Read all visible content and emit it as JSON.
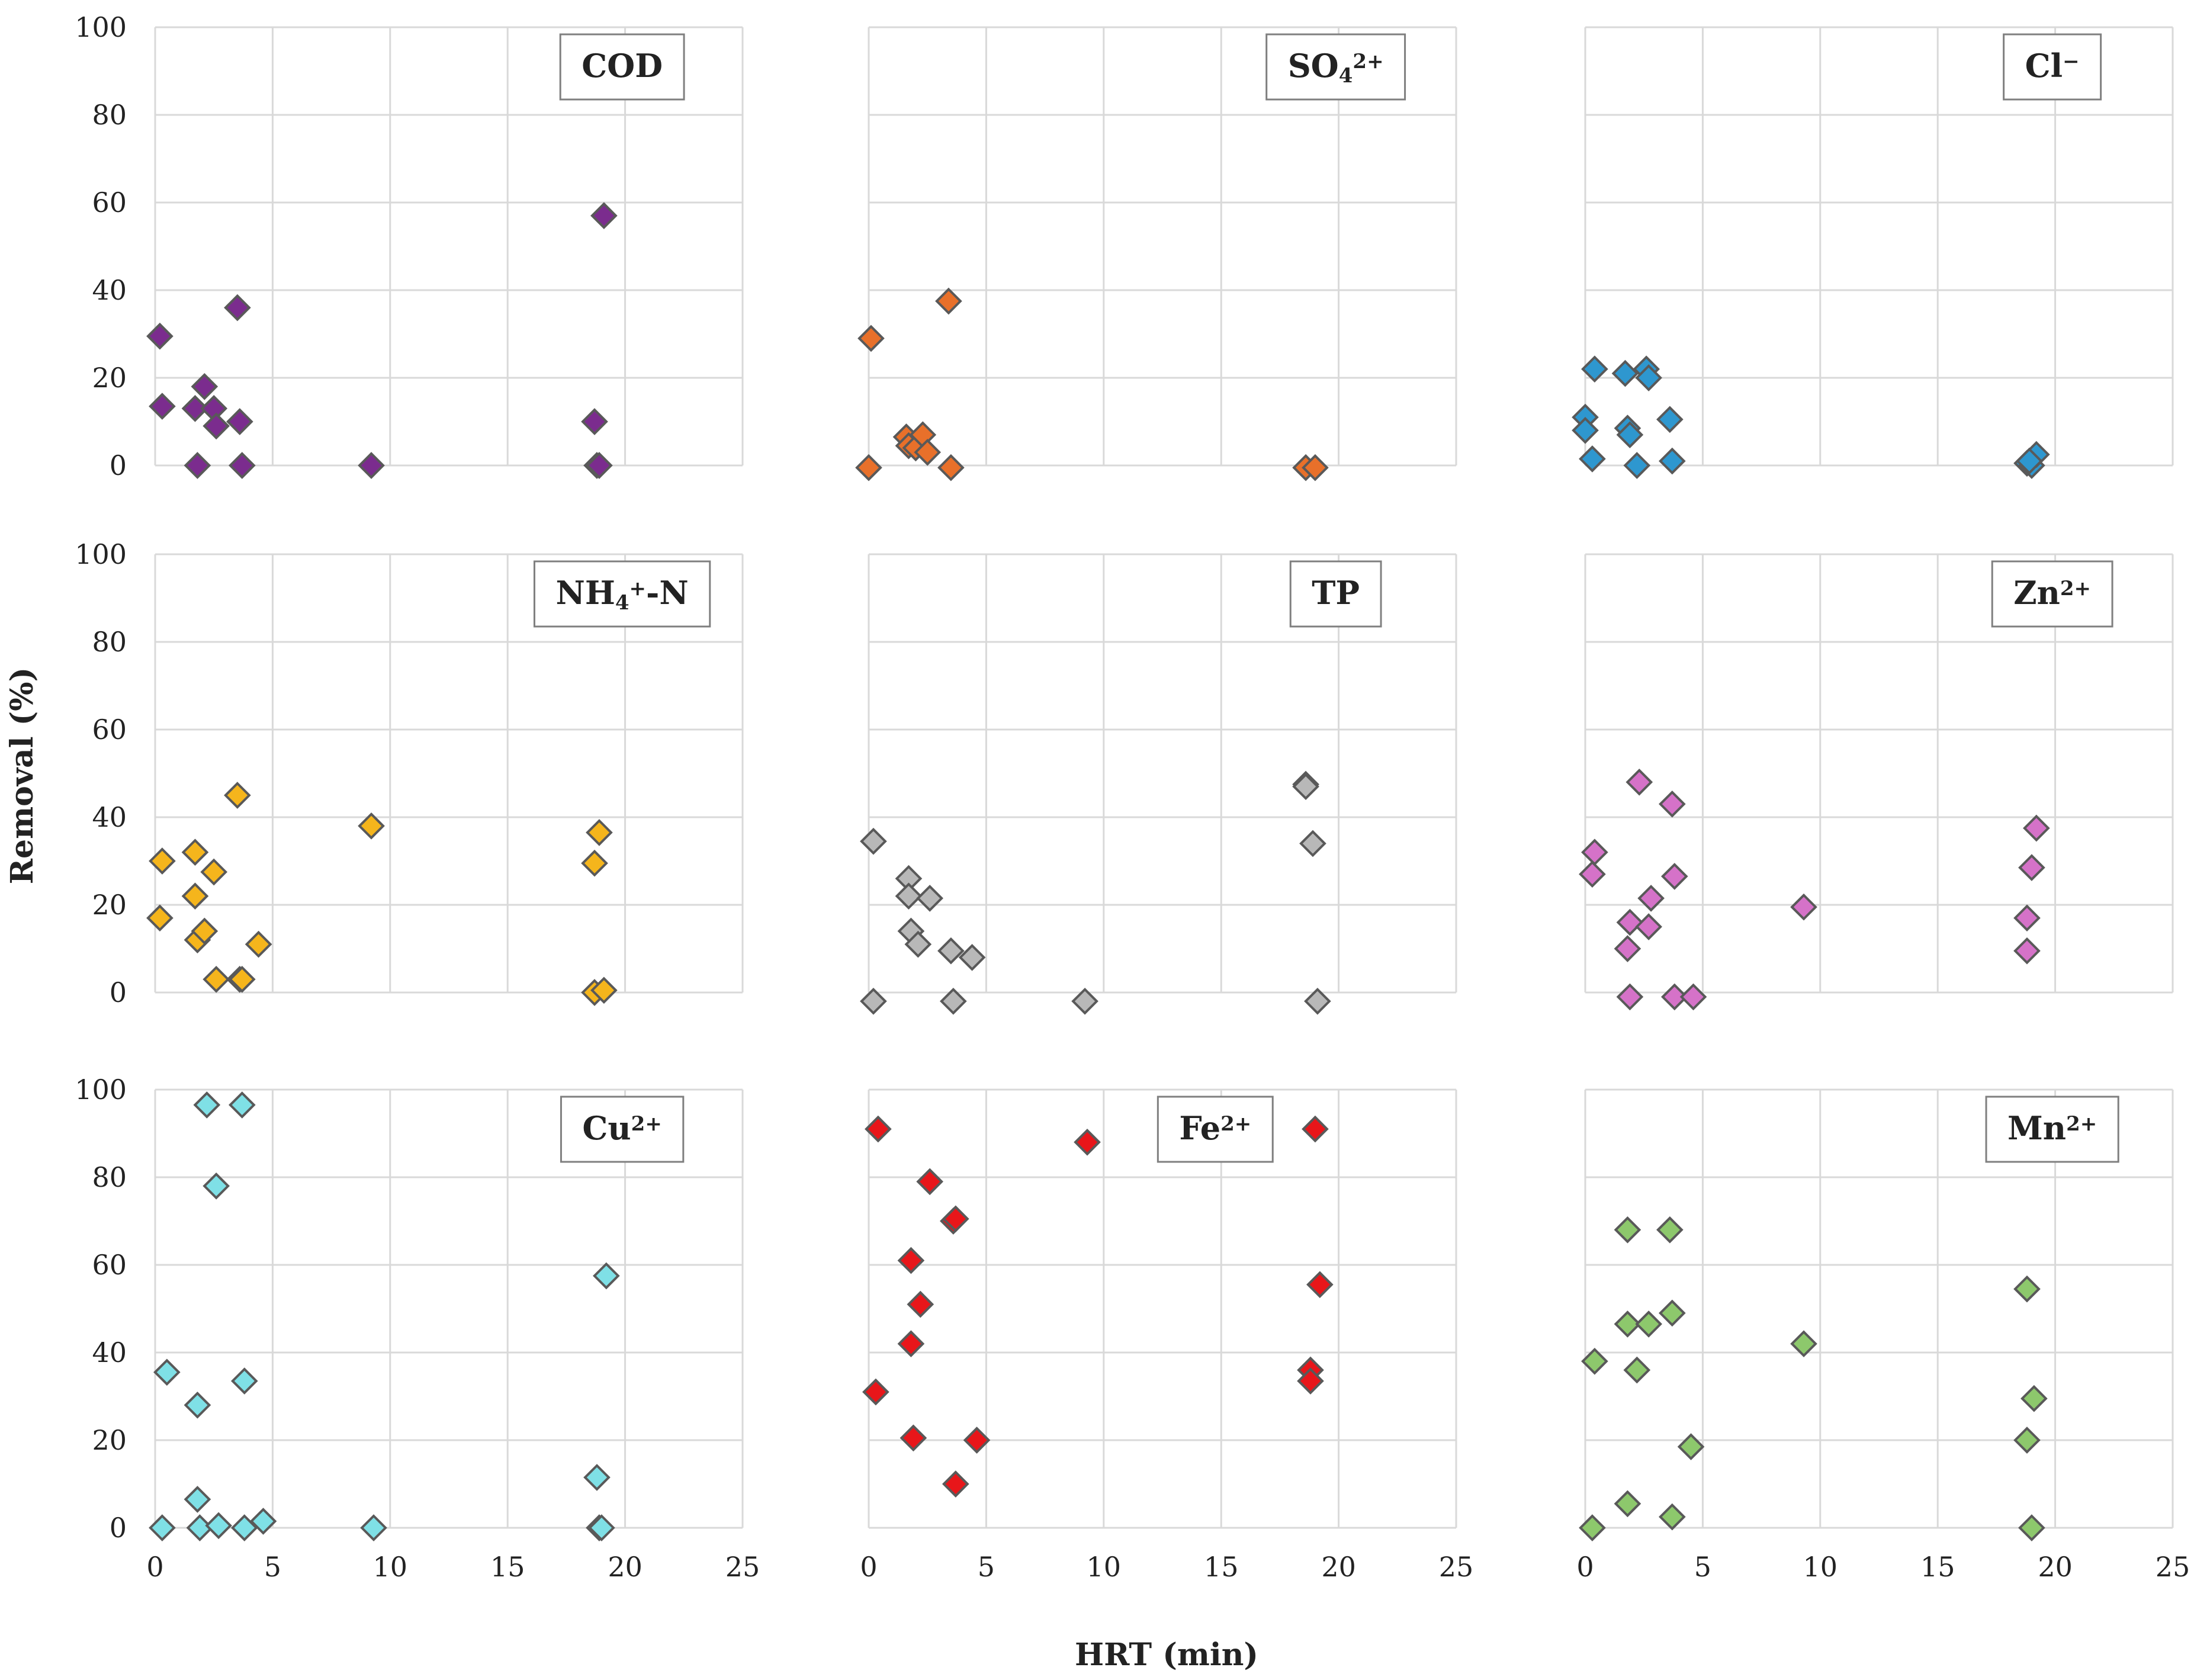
{
  "figure": {
    "ylabel": "Removal (%)",
    "xlabel": "HRT (min)"
  },
  "chart_data": [
    {
      "type": "scatter",
      "title": "COD",
      "label_parts": [
        {
          "t": "COD"
        }
      ],
      "color": "#7B2C8E",
      "xlim": [
        0,
        25
      ],
      "ylim": [
        0,
        100
      ],
      "xticks": [
        "0",
        "5",
        "10",
        "15",
        "20",
        "25"
      ],
      "yticks": [
        "0",
        "20",
        "40",
        "60",
        "80",
        "100"
      ],
      "show_x_ticks": false,
      "show_y_ticks": true,
      "label_pos": "top-right",
      "points": [
        [
          0.2,
          29.5
        ],
        [
          0.3,
          13.5
        ],
        [
          1.7,
          13
        ],
        [
          1.8,
          0
        ],
        [
          2.1,
          18
        ],
        [
          2.5,
          13
        ],
        [
          2.6,
          9
        ],
        [
          3.5,
          36
        ],
        [
          3.6,
          10
        ],
        [
          3.7,
          0
        ],
        [
          9.2,
          0
        ],
        [
          18.7,
          10
        ],
        [
          18.8,
          0
        ],
        [
          19.1,
          57
        ],
        [
          18.9,
          0
        ]
      ]
    },
    {
      "type": "scatter",
      "title": "SO4 2+",
      "label_parts": [
        {
          "t": "SO"
        },
        {
          "t": "4",
          "sub": true
        },
        {
          "t": "2+",
          "sup": true
        }
      ],
      "color": "#E8702A",
      "xlim": [
        0,
        25
      ],
      "ylim": [
        0,
        100
      ],
      "xticks": [
        "0",
        "5",
        "10",
        "15",
        "20",
        "25"
      ],
      "yticks": [
        "0",
        "20",
        "40",
        "60",
        "80",
        "100"
      ],
      "show_x_ticks": false,
      "show_y_ticks": false,
      "label_pos": "top-right",
      "points": [
        [
          0.1,
          29
        ],
        [
          0.0,
          -0.5
        ],
        [
          1.6,
          6.5
        ],
        [
          1.7,
          4.5
        ],
        [
          2.0,
          4
        ],
        [
          2.3,
          7
        ],
        [
          2.5,
          3
        ],
        [
          3.4,
          37.5
        ],
        [
          3.5,
          -0.5
        ],
        [
          18.6,
          -0.5
        ],
        [
          19.0,
          -0.5
        ]
      ]
    },
    {
      "type": "scatter",
      "title": "Cl−",
      "label_parts": [
        {
          "t": "Cl"
        },
        {
          "t": "−",
          "sup": true
        }
      ],
      "color": "#2E97CF",
      "xlim": [
        0,
        25
      ],
      "ylim": [
        0,
        100
      ],
      "xticks": [
        "0",
        "5",
        "10",
        "15",
        "20",
        "25"
      ],
      "yticks": [
        "0",
        "20",
        "40",
        "60",
        "80",
        "100"
      ],
      "show_x_ticks": false,
      "show_y_ticks": false,
      "label_pos": "top-right",
      "points": [
        [
          0.0,
          11
        ],
        [
          0.0,
          8
        ],
        [
          0.3,
          1.5
        ],
        [
          0.4,
          22
        ],
        [
          1.7,
          21
        ],
        [
          1.8,
          8.5
        ],
        [
          1.9,
          7
        ],
        [
          2.2,
          0
        ],
        [
          2.6,
          22
        ],
        [
          2.7,
          20
        ],
        [
          3.6,
          10.5
        ],
        [
          3.7,
          1
        ],
        [
          18.8,
          0.5
        ],
        [
          19.0,
          0
        ],
        [
          19.2,
          2.5
        ],
        [
          18.9,
          1
        ]
      ]
    },
    {
      "type": "scatter",
      "title": "NH4+-N",
      "label_parts": [
        {
          "t": "NH"
        },
        {
          "t": "4",
          "sub": true
        },
        {
          "t": "+",
          "sup": true
        },
        {
          "t": "-N"
        }
      ],
      "color": "#F5B51C",
      "xlim": [
        0,
        25
      ],
      "ylim": [
        0,
        100
      ],
      "xticks": [
        "0",
        "5",
        "10",
        "15",
        "20",
        "25"
      ],
      "yticks": [
        "0",
        "20",
        "40",
        "60",
        "80",
        "100"
      ],
      "show_x_ticks": false,
      "show_y_ticks": true,
      "label_pos": "top-right",
      "points": [
        [
          0.2,
          17
        ],
        [
          0.3,
          30
        ],
        [
          1.7,
          32
        ],
        [
          1.7,
          22
        ],
        [
          1.8,
          12
        ],
        [
          2.1,
          14
        ],
        [
          2.5,
          27.5
        ],
        [
          2.6,
          3
        ],
        [
          3.5,
          45
        ],
        [
          3.6,
          3
        ],
        [
          3.7,
          3
        ],
        [
          4.4,
          11
        ],
        [
          9.2,
          38
        ],
        [
          18.7,
          29.5
        ],
        [
          18.9,
          36.5
        ],
        [
          18.7,
          0
        ],
        [
          19.1,
          0.5
        ]
      ]
    },
    {
      "type": "scatter",
      "title": "TP",
      "label_parts": [
        {
          "t": "TP"
        }
      ],
      "color": "#B8B8B8",
      "xlim": [
        0,
        25
      ],
      "ylim": [
        0,
        100
      ],
      "xticks": [
        "0",
        "5",
        "10",
        "15",
        "20",
        "25"
      ],
      "yticks": [
        "0",
        "20",
        "40",
        "60",
        "80",
        "100"
      ],
      "show_x_ticks": false,
      "show_y_ticks": false,
      "label_pos": "top-right",
      "points": [
        [
          0.2,
          34.5
        ],
        [
          0.2,
          -2
        ],
        [
          1.7,
          26
        ],
        [
          1.7,
          22
        ],
        [
          1.8,
          14
        ],
        [
          2.1,
          11
        ],
        [
          2.6,
          21.5
        ],
        [
          3.5,
          9.5
        ],
        [
          3.6,
          -2
        ],
        [
          4.4,
          8
        ],
        [
          9.2,
          -2
        ],
        [
          18.6,
          47.5
        ],
        [
          18.6,
          47
        ],
        [
          18.9,
          34
        ],
        [
          19.1,
          -2
        ]
      ]
    },
    {
      "type": "scatter",
      "title": "Zn2+",
      "label_parts": [
        {
          "t": "Zn"
        },
        {
          "t": "2+",
          "sup": true
        }
      ],
      "color": "#D572C8",
      "xlim": [
        0,
        25
      ],
      "ylim": [
        0,
        100
      ],
      "xticks": [
        "0",
        "5",
        "10",
        "15",
        "20",
        "25"
      ],
      "yticks": [
        "0",
        "20",
        "40",
        "60",
        "80",
        "100"
      ],
      "show_x_ticks": false,
      "show_y_ticks": false,
      "label_pos": "top-right",
      "points": [
        [
          0.3,
          27
        ],
        [
          0.4,
          32
        ],
        [
          1.8,
          10
        ],
        [
          1.9,
          16
        ],
        [
          1.9,
          -1
        ],
        [
          2.3,
          48
        ],
        [
          2.7,
          15
        ],
        [
          2.8,
          21.5
        ],
        [
          3.7,
          43
        ],
        [
          3.8,
          26.5
        ],
        [
          3.8,
          -1
        ],
        [
          4.6,
          -1
        ],
        [
          9.3,
          19.5
        ],
        [
          18.8,
          17
        ],
        [
          18.8,
          9.5
        ],
        [
          19.0,
          28.5
        ],
        [
          19.2,
          37.5
        ]
      ]
    },
    {
      "type": "scatter",
      "title": "Cu2+",
      "label_parts": [
        {
          "t": "Cu"
        },
        {
          "t": "2+",
          "sup": true
        }
      ],
      "color": "#7FE0E6",
      "xlim": [
        0,
        25
      ],
      "ylim": [
        0,
        100
      ],
      "xticks": [
        "0",
        "5",
        "10",
        "15",
        "20",
        "25"
      ],
      "yticks": [
        "0",
        "20",
        "40",
        "60",
        "80",
        "100"
      ],
      "show_x_ticks": true,
      "show_y_ticks": true,
      "label_pos": "top-right",
      "points": [
        [
          0.3,
          0
        ],
        [
          0.5,
          35.5
        ],
        [
          1.8,
          28
        ],
        [
          1.8,
          6.5
        ],
        [
          1.9,
          0
        ],
        [
          2.2,
          96.5
        ],
        [
          2.6,
          78
        ],
        [
          2.7,
          0.5
        ],
        [
          3.7,
          96.5
        ],
        [
          3.8,
          33.5
        ],
        [
          3.8,
          0
        ],
        [
          4.6,
          1.5
        ],
        [
          9.3,
          0
        ],
        [
          18.8,
          11.5
        ],
        [
          18.9,
          0
        ],
        [
          19.0,
          0
        ],
        [
          19.2,
          57.5
        ]
      ]
    },
    {
      "type": "scatter",
      "title": "Fe2+",
      "label_parts": [
        {
          "t": "Fe"
        },
        {
          "t": "2+",
          "sup": true
        }
      ],
      "color": "#E8161A",
      "xlim": [
        0,
        25
      ],
      "ylim": [
        0,
        100
      ],
      "xticks": [
        "0",
        "5",
        "10",
        "15",
        "20",
        "25"
      ],
      "yticks": [
        "0",
        "20",
        "40",
        "60",
        "80",
        "100"
      ],
      "show_x_ticks": true,
      "show_y_ticks": false,
      "label_pos": "top-center",
      "points": [
        [
          0.3,
          31
        ],
        [
          0.4,
          91
        ],
        [
          1.8,
          61
        ],
        [
          1.8,
          42
        ],
        [
          1.9,
          20.5
        ],
        [
          2.2,
          51
        ],
        [
          2.6,
          79
        ],
        [
          3.6,
          70
        ],
        [
          3.7,
          70.5
        ],
        [
          3.7,
          10
        ],
        [
          4.6,
          20
        ],
        [
          9.3,
          88
        ],
        [
          18.8,
          36
        ],
        [
          18.8,
          33.5
        ],
        [
          19.0,
          91
        ],
        [
          19.2,
          55.5
        ]
      ]
    },
    {
      "type": "scatter",
      "title": "Mn2+",
      "label_parts": [
        {
          "t": "Mn"
        },
        {
          "t": "2+",
          "sup": true
        }
      ],
      "color": "#8DC86C",
      "xlim": [
        0,
        25
      ],
      "ylim": [
        0,
        100
      ],
      "xticks": [
        "0",
        "5",
        "10",
        "15",
        "20",
        "25"
      ],
      "yticks": [
        "0",
        "20",
        "40",
        "60",
        "80",
        "100"
      ],
      "show_x_ticks": true,
      "show_y_ticks": false,
      "label_pos": "top-right",
      "points": [
        [
          0.3,
          0
        ],
        [
          0.4,
          38
        ],
        [
          1.8,
          68
        ],
        [
          1.8,
          46.5
        ],
        [
          1.8,
          5.5
        ],
        [
          2.2,
          36
        ],
        [
          2.7,
          46.5
        ],
        [
          3.6,
          68
        ],
        [
          3.7,
          49
        ],
        [
          3.7,
          2.5
        ],
        [
          4.5,
          18.5
        ],
        [
          9.3,
          42
        ],
        [
          18.8,
          54.5
        ],
        [
          18.8,
          20
        ],
        [
          19.0,
          0
        ],
        [
          19.1,
          29.5
        ]
      ]
    }
  ]
}
